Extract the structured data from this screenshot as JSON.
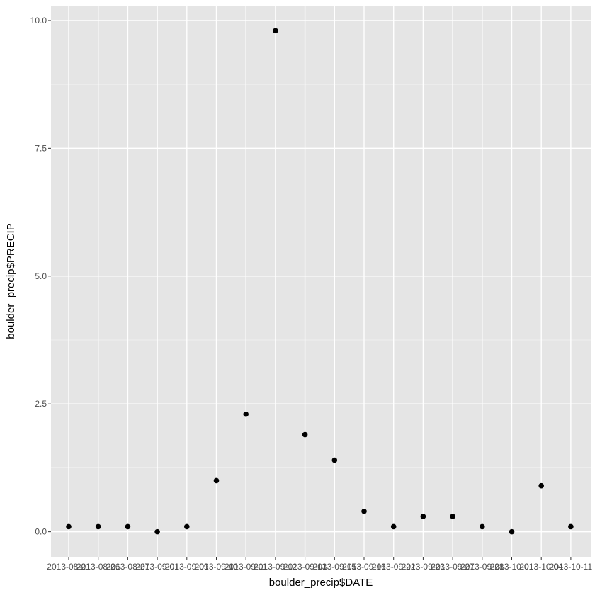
{
  "chart_data": {
    "type": "scatter",
    "title": "",
    "xlabel": "boulder_precip$DATE",
    "ylabel": "boulder_precip$PRECIP",
    "x": [
      "2013-08-21",
      "2013-08-26",
      "2013-08-27",
      "2013-09-01",
      "2013-09-09",
      "2013-09-10",
      "2013-09-11",
      "2013-09-12",
      "2013-09-13",
      "2013-09-15",
      "2013-09-16",
      "2013-09-22",
      "2013-09-23",
      "2013-09-27",
      "2013-09-28",
      "2013-10-01",
      "2013-10-04",
      "2013-10-11"
    ],
    "y": [
      0.1,
      0.1,
      0.1,
      0.0,
      0.1,
      1.0,
      2.3,
      9.8,
      1.9,
      1.4,
      0.4,
      0.1,
      0.3,
      0.3,
      0.1,
      0.0,
      0.9,
      0.1
    ],
    "x_tick_labels": [
      "2013-08-21",
      "2013-08-26",
      "2013-08-27",
      "2013-09-01",
      "2013-09-09",
      "2013-09-10",
      "2013-09-11",
      "2013-09-12",
      "2013-09-13",
      "2013-09-15",
      "2013-09-16",
      "2013-09-22",
      "2013-09-23",
      "2013-09-27",
      "2013-09-28",
      "2013-10-01",
      "2013-10-04",
      "2013-10-11"
    ],
    "x_scale": "discrete",
    "y_ticks": [
      0.0,
      2.5,
      5.0,
      7.5,
      10.0
    ],
    "y_tick_labels": [
      "0.0",
      "2.5",
      "5.0",
      "7.5",
      "10.0"
    ],
    "ylim": [
      -0.49,
      10.29
    ],
    "grid": true,
    "legend": "none",
    "colors": {
      "panel": "#e5e5e5",
      "grid": "#ffffff",
      "point": "#000000",
      "tick_text": "#4d4d4d"
    }
  }
}
